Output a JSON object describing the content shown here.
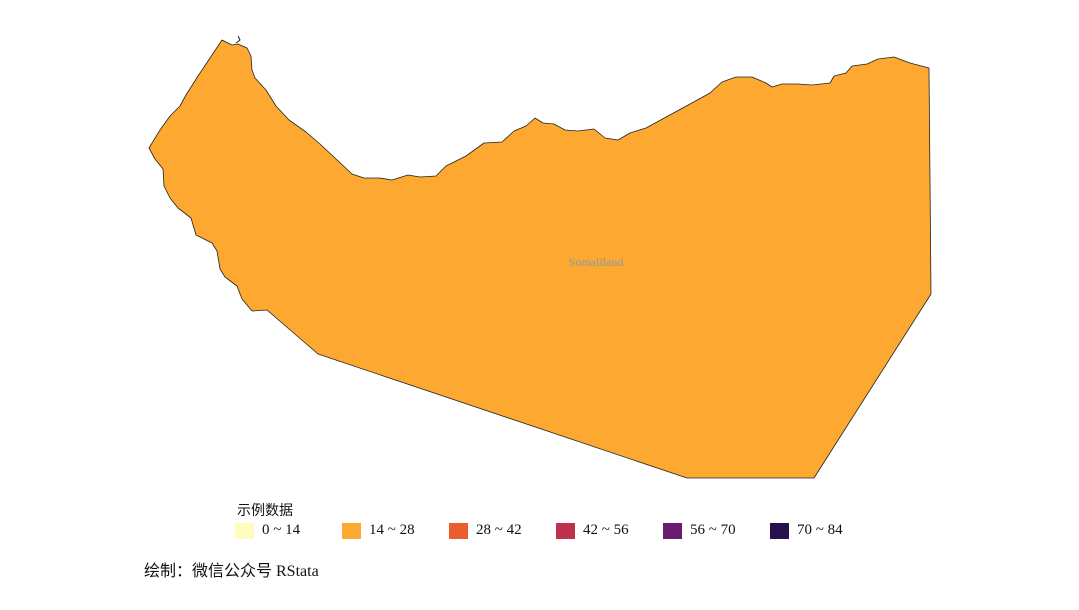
{
  "map": {
    "region_name": "Somaliland",
    "region_value_range": "14 ~ 28"
  },
  "legend": {
    "title": "示例数据",
    "items": [
      {
        "label": "0 ~ 14",
        "color": "#fcfdbf"
      },
      {
        "label": "14 ~ 28",
        "color": "#fca831"
      },
      {
        "label": "28 ~ 42",
        "color": "#eb5c2f"
      },
      {
        "label": "42 ~ 56",
        "color": "#c0314e"
      },
      {
        "label": "56 ~ 70",
        "color": "#6c1c6d"
      },
      {
        "label": "70 ~ 84",
        "color": "#25124a"
      }
    ]
  },
  "caption": "绘制：微信公众号 RStata"
}
